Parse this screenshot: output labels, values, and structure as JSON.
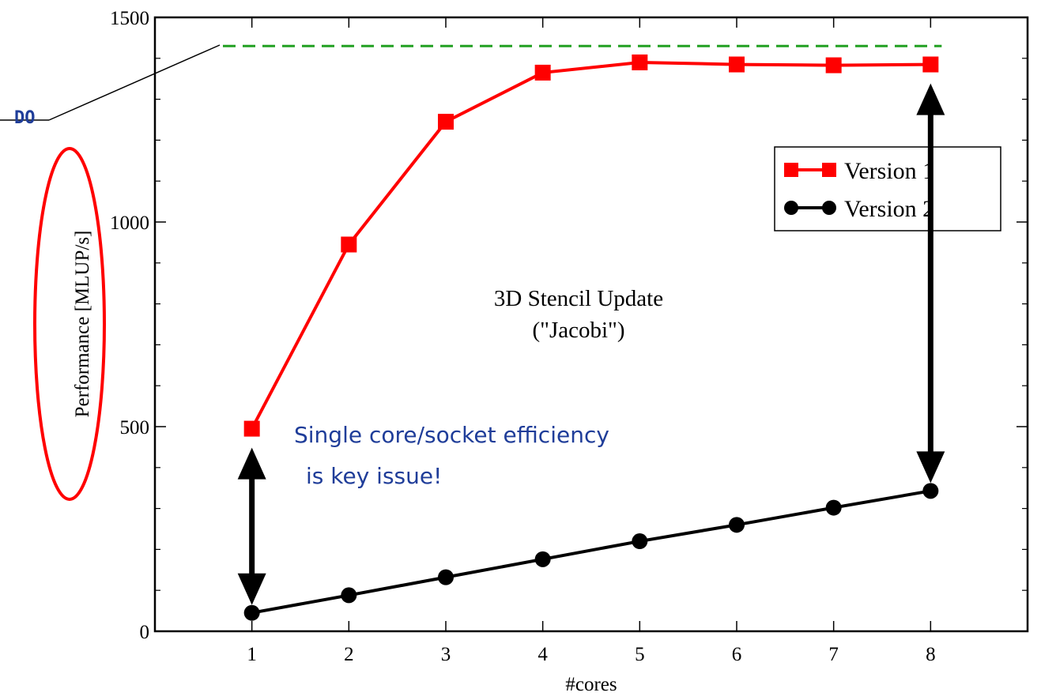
{
  "chart_data": {
    "type": "line",
    "x": [
      1,
      2,
      3,
      4,
      5,
      6,
      7,
      8
    ],
    "series": [
      {
        "name": "Version 1",
        "color": "#ff0000",
        "marker": "square",
        "values": [
          495,
          945,
          1245,
          1365,
          1390,
          1385,
          1383,
          1385
        ]
      },
      {
        "name": "Version 2",
        "color": "#000000",
        "marker": "circle",
        "values": [
          45,
          88,
          132,
          176,
          220,
          260,
          302,
          343
        ]
      }
    ],
    "reference_line": {
      "value": 1430,
      "color": "#22a022",
      "style": "dashed"
    },
    "xlabel": "#cores",
    "ylabel": "Performance [MLUP/s]",
    "xlim": [
      0,
      9
    ],
    "ylim": [
      0,
      1500
    ],
    "x_ticks": [
      1,
      2,
      3,
      4,
      5,
      6,
      7,
      8
    ],
    "y_ticks": [
      0,
      500,
      1000,
      1500
    ],
    "grid": false,
    "legend_position": "upper-right",
    "inner_title": [
      "3D Stencil Update",
      "(\"Jacobi\")"
    ],
    "annotations": {
      "callout": [
        "Single core/socket efficiency",
        "is key issue!"
      ],
      "do_label": "DO"
    },
    "gap_arrows_at_x": [
      1,
      8
    ]
  }
}
